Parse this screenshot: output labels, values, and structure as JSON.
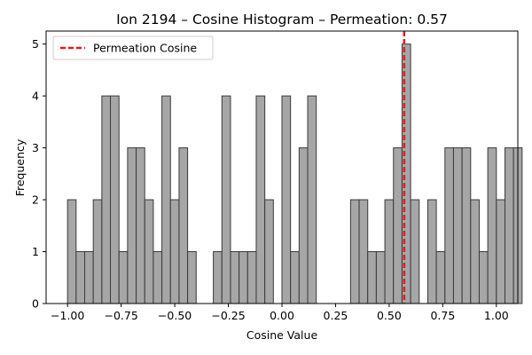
{
  "chart_data": {
    "type": "bar",
    "title": "Ion 2194 – Cosine Histogram – Permeation: 0.57",
    "xlabel": "Cosine Value",
    "ylabel": "Frequency",
    "xlim": [
      -1.1,
      1.1
    ],
    "ylim": [
      0,
      5.25
    ],
    "bin_start": -1.0,
    "bin_width": 0.04,
    "counts": [
      2,
      1,
      1,
      2,
      4,
      4,
      1,
      3,
      3,
      2,
      1,
      4,
      2,
      3,
      1,
      0,
      0,
      1,
      4,
      1,
      1,
      1,
      4,
      2,
      0,
      4,
      1,
      3,
      4,
      0,
      0,
      0,
      0,
      2,
      2,
      1,
      1,
      2,
      3,
      5,
      2,
      0,
      2,
      1,
      3,
      3,
      3,
      2,
      1,
      3,
      2,
      3,
      3
    ],
    "x_ticks": [
      -1.0,
      -0.75,
      -0.5,
      -0.25,
      0.0,
      0.25,
      0.5,
      0.75,
      1.0
    ],
    "x_tick_labels": [
      "−1.00",
      "−0.75",
      "−0.50",
      "−0.25",
      "0.00",
      "0.25",
      "0.50",
      "0.75",
      "1.00"
    ],
    "y_ticks": [
      0,
      1,
      2,
      3,
      4,
      5
    ],
    "y_tick_labels": [
      "0",
      "1",
      "2",
      "3",
      "4",
      "5"
    ],
    "permeation_cosine": 0.57,
    "legend": {
      "label": "Permeation Cosine",
      "position": "top-left"
    },
    "colors": {
      "bar_fill": "#a6a6a6",
      "bar_edge": "#3a3a3a",
      "vline": "#e31a1c"
    },
    "grid": false
  }
}
